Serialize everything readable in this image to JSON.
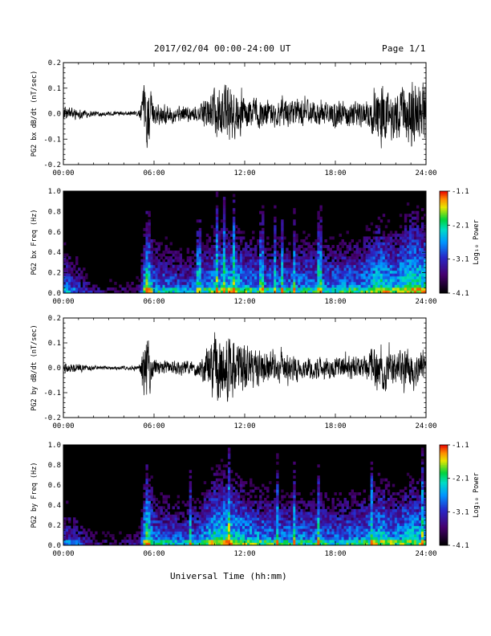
{
  "header": {
    "title": "2017/02/04  00:00-24:00 UT",
    "page": "Page 1/1"
  },
  "footer": {
    "xlabel": "Universal Time (hh:mm)"
  },
  "chart_data": [
    {
      "type": "line",
      "ylabel": "PG2 bx dB/dt (nT/sec)",
      "xlim": [
        0,
        24
      ],
      "ylim": [
        -0.2,
        0.2
      ],
      "x_ticks": [
        "00:00",
        "06:00",
        "12:00",
        "18:00",
        "24:00"
      ],
      "y_ticks": [
        "-0.2",
        "-0.1",
        "0.0",
        "0.1",
        "0.2"
      ],
      "series": [
        {
          "x": [
            0,
            1,
            2,
            3,
            4,
            5,
            5.5,
            6,
            7,
            8,
            9,
            10,
            11,
            12,
            13,
            14,
            15,
            16,
            17,
            18,
            19,
            20,
            21,
            22,
            23,
            24
          ],
          "envelope": [
            0.04,
            0.03,
            0.015,
            0.012,
            0.012,
            0.015,
            0.2,
            0.06,
            0.05,
            0.045,
            0.05,
            0.12,
            0.16,
            0.1,
            0.085,
            0.07,
            0.075,
            0.08,
            0.065,
            0.07,
            0.07,
            0.075,
            0.18,
            0.12,
            0.2,
            0.18
          ]
        }
      ]
    },
    {
      "type": "heatmap",
      "ylabel": "PG2 bx Freq (Hz)",
      "xlim": [
        0,
        24
      ],
      "ylim": [
        0.0,
        1.0
      ],
      "x_ticks": [
        "00:00",
        "06:00",
        "12:00",
        "18:00",
        "24:00"
      ],
      "y_ticks": [
        "0.0",
        "0.2",
        "0.4",
        "0.6",
        "0.8",
        "1.0"
      ],
      "colorbar": {
        "label": "Log₁₀ Power",
        "range": [
          -4.1,
          -1.1
        ],
        "ticks": [
          "-1.1",
          "-2.1",
          "-3.1",
          "-4.1"
        ]
      },
      "activity": {
        "x": [
          0,
          1,
          2,
          3,
          4,
          5,
          5.5,
          6,
          7,
          8,
          9,
          10,
          11,
          12,
          13,
          14,
          15,
          16,
          17,
          18,
          19,
          20,
          21,
          22,
          23,
          24
        ],
        "level": [
          0.55,
          0.4,
          0.2,
          0.15,
          0.15,
          0.2,
          0.9,
          0.6,
          0.55,
          0.5,
          0.55,
          0.7,
          0.75,
          0.65,
          0.6,
          0.6,
          0.6,
          0.62,
          0.6,
          0.6,
          0.62,
          0.65,
          0.8,
          0.7,
          0.85,
          0.8
        ]
      }
    },
    {
      "type": "line",
      "ylabel": "PG2 by dB/dt (nT/sec)",
      "xlim": [
        0,
        24
      ],
      "ylim": [
        -0.2,
        0.2
      ],
      "x_ticks": [
        "00:00",
        "06:00",
        "12:00",
        "18:00",
        "24:00"
      ],
      "y_ticks": [
        "-0.2",
        "-0.1",
        "0.0",
        "0.1",
        "0.2"
      ],
      "series": [
        {
          "x": [
            0,
            1,
            2,
            3,
            4,
            5,
            5.5,
            6,
            7,
            8,
            9,
            10,
            11,
            12,
            13,
            14,
            15,
            16,
            17,
            18,
            19,
            20,
            21,
            22,
            23,
            24
          ],
          "envelope": [
            0.035,
            0.025,
            0.012,
            0.01,
            0.012,
            0.015,
            0.2,
            0.05,
            0.04,
            0.04,
            0.05,
            0.2,
            0.2,
            0.15,
            0.1,
            0.085,
            0.07,
            0.065,
            0.06,
            0.06,
            0.065,
            0.07,
            0.15,
            0.085,
            0.12,
            0.08
          ]
        }
      ]
    },
    {
      "type": "heatmap",
      "ylabel": "PG2 by Freq (Hz)",
      "xlim": [
        0,
        24
      ],
      "ylim": [
        0.0,
        1.0
      ],
      "x_ticks": [
        "00:00",
        "06:00",
        "12:00",
        "18:00",
        "24:00"
      ],
      "y_ticks": [
        "0.0",
        "0.2",
        "0.4",
        "0.6",
        "0.8",
        "1.0"
      ],
      "colorbar": {
        "label": "Log₁₀ Power",
        "range": [
          -4.1,
          -1.1
        ],
        "ticks": [
          "-1.1",
          "-2.1",
          "-3.1",
          "-4.1"
        ]
      },
      "activity": {
        "x": [
          0,
          1,
          2,
          3,
          4,
          5,
          5.5,
          6,
          7,
          8,
          9,
          10,
          11,
          12,
          13,
          14,
          15,
          16,
          17,
          18,
          19,
          20,
          21,
          22,
          23,
          24
        ],
        "level": [
          0.5,
          0.38,
          0.2,
          0.15,
          0.16,
          0.22,
          0.9,
          0.6,
          0.55,
          0.52,
          0.58,
          0.8,
          0.8,
          0.7,
          0.65,
          0.62,
          0.6,
          0.6,
          0.6,
          0.58,
          0.6,
          0.62,
          0.75,
          0.65,
          0.75,
          0.7
        ]
      }
    }
  ]
}
